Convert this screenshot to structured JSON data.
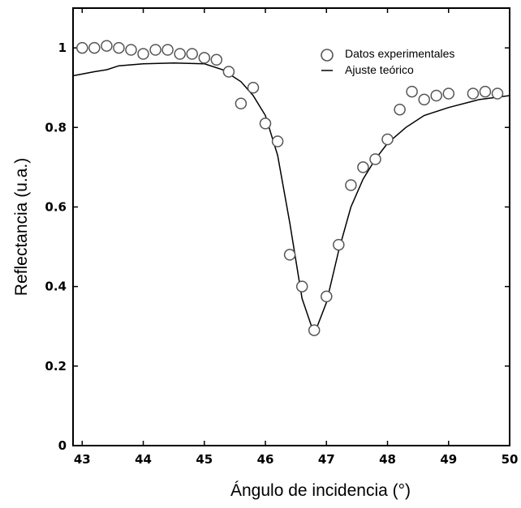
{
  "chart_data": {
    "type": "scatter",
    "title": "",
    "xlabel": "Ángulo de incidencia (°)",
    "ylabel": "Reflectancia (u.a.)",
    "xlim": [
      42.85,
      50
    ],
    "ylim": [
      0,
      1.1
    ],
    "xticks": [
      43,
      44,
      45,
      46,
      47,
      48,
      49,
      50
    ],
    "yticks": [
      0,
      0.2,
      0.4,
      0.6,
      0.8,
      1
    ],
    "ytick_labels": [
      "0",
      "0.2",
      "0.4",
      "0.6",
      "0.8",
      "1"
    ],
    "grid": false,
    "legend_position": "top-right",
    "series": [
      {
        "name": "Datos experimentales",
        "kind": "markers",
        "marker": "open-circle",
        "x": [
          43.0,
          43.2,
          43.4,
          43.6,
          43.8,
          44.0,
          44.2,
          44.4,
          44.6,
          44.8,
          45.0,
          45.2,
          45.4,
          45.6,
          45.8,
          46.0,
          46.2,
          46.4,
          46.6,
          46.8,
          47.0,
          47.2,
          47.4,
          47.6,
          47.8,
          48.0,
          48.2,
          48.4,
          48.6,
          48.8,
          49.0,
          49.4,
          49.6,
          49.8
        ],
        "y": [
          1.0,
          1.0,
          1.005,
          1.0,
          0.995,
          0.985,
          0.995,
          0.995,
          0.985,
          0.985,
          0.975,
          0.97,
          0.94,
          0.86,
          0.9,
          0.81,
          0.765,
          0.48,
          0.4,
          0.29,
          0.375,
          0.505,
          0.655,
          0.7,
          0.72,
          0.77,
          0.845,
          0.89,
          0.87,
          0.88,
          0.885,
          0.885,
          0.89,
          0.885
        ]
      },
      {
        "name": "Ajuste teórico",
        "kind": "line",
        "x": [
          42.85,
          43.2,
          43.4,
          43.6,
          44.0,
          44.5,
          45.0,
          45.3,
          45.6,
          45.8,
          46.0,
          46.2,
          46.4,
          46.6,
          46.8,
          47.0,
          47.2,
          47.4,
          47.6,
          47.8,
          48.0,
          48.3,
          48.6,
          49.0,
          49.5,
          50.0
        ],
        "y": [
          0.93,
          0.94,
          0.945,
          0.955,
          0.96,
          0.962,
          0.96,
          0.945,
          0.915,
          0.88,
          0.83,
          0.73,
          0.56,
          0.37,
          0.28,
          0.36,
          0.49,
          0.6,
          0.67,
          0.72,
          0.76,
          0.8,
          0.83,
          0.85,
          0.87,
          0.88
        ]
      }
    ]
  }
}
